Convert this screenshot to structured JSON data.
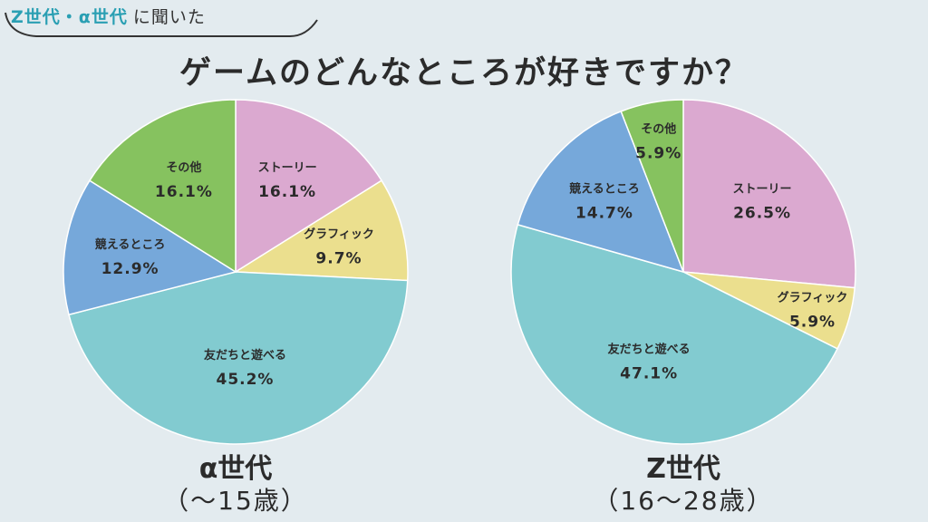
{
  "header": {
    "subtitle_accent": "Z世代・α世代",
    "subtitle_rest": "に聞いた",
    "title": "ゲームのどんなところが好きですか？"
  },
  "colors": {
    "story": "#dba9d0",
    "graphic": "#ebdf8e",
    "friends": "#82cbd0",
    "memorize": "#76a8da",
    "other": "#86c25f",
    "accent": "#2a9fb3"
  },
  "chart_data": [
    {
      "type": "pie",
      "title": "",
      "group_label": "α世代",
      "age_label": "（～15歳）",
      "slices": [
        {
          "label": "ストーリー",
          "value": 16.1,
          "value_label": "16.1%",
          "color_key": "story"
        },
        {
          "label": "グラフィック",
          "value": 9.7,
          "value_label": "9.7%",
          "color_key": "graphic"
        },
        {
          "label": "友だちと遊べる",
          "value": 45.2,
          "value_label": "45.2%",
          "color_key": "friends"
        },
        {
          "label": "競えるところ",
          "value": 12.9,
          "value_label": "12.9%",
          "color_key": "memorize"
        },
        {
          "label": "その他",
          "value": 16.1,
          "value_label": "16.1%",
          "color_key": "other"
        }
      ]
    },
    {
      "type": "pie",
      "title": "",
      "group_label": "Z世代",
      "age_label": "（16～28歳）",
      "slices": [
        {
          "label": "ストーリー",
          "value": 26.5,
          "value_label": "26.5%",
          "color_key": "story"
        },
        {
          "label": "グラフィック",
          "value": 5.9,
          "value_label": "5.9%",
          "color_key": "graphic"
        },
        {
          "label": "友だちと遊べる",
          "value": 47.1,
          "value_label": "47.1%",
          "color_key": "friends"
        },
        {
          "label": "競えるところ",
          "value": 14.7,
          "value_label": "14.7%",
          "color_key": "memorize"
        },
        {
          "label": "その他",
          "value": 5.9,
          "value_label": "5.9%",
          "color_key": "other"
        }
      ]
    }
  ]
}
